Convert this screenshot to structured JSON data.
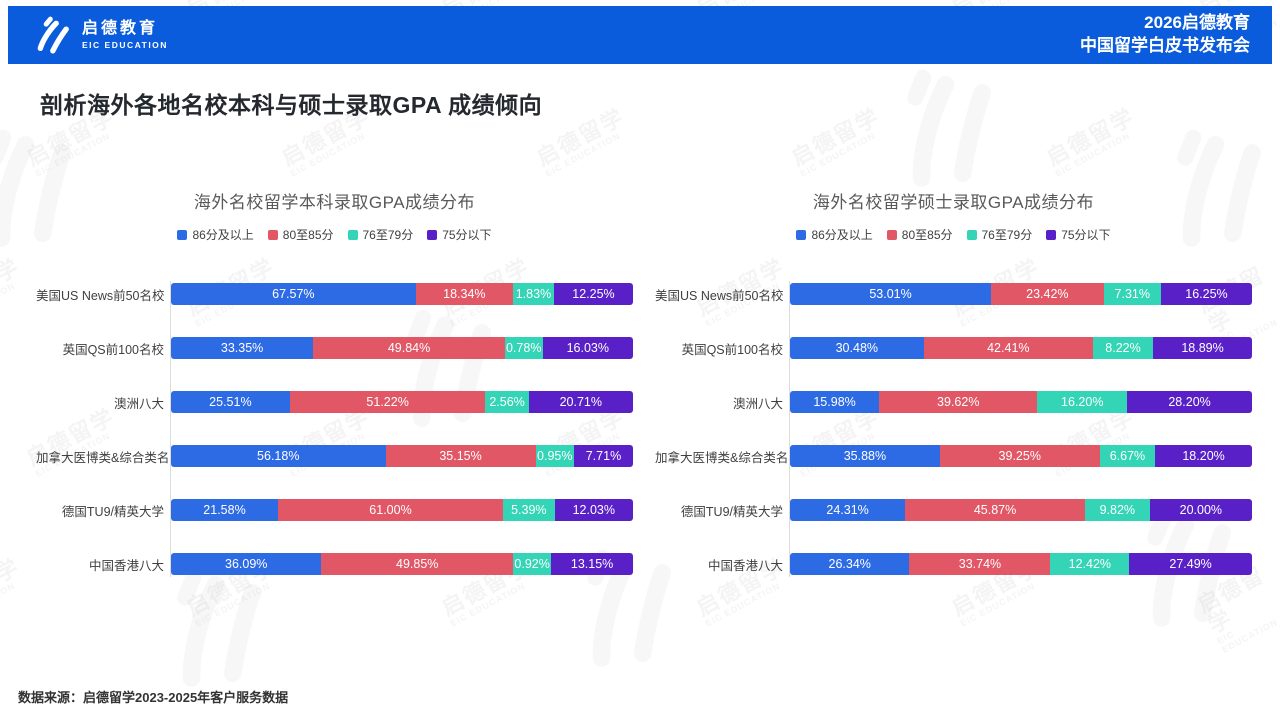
{
  "header": {
    "logo_cn": "启德教育",
    "logo_en": "EIC EDUCATION",
    "title_line1": "2026启德教育",
    "title_line2": "中国留学白皮书发布会"
  },
  "page_title": "剖析海外各地名校本科与硕士录取GPA 成绩倾向",
  "footer": {
    "source": "数据来源：启德留学2023-2025年客户服务数据"
  },
  "watermark": {
    "text_cn": "启德留学",
    "text_en": "EIC EDUCATION"
  },
  "colors": {
    "header_bg": "#0A5CDC",
    "series": [
      "#2D6BE5",
      "#E15766",
      "#34D5B6",
      "#5A20C8"
    ]
  },
  "legend": [
    "86分及以上",
    "80至85分",
    "76至79分",
    "75分以下"
  ],
  "chart_data": [
    {
      "type": "bar",
      "stacked": true,
      "orientation": "horizontal",
      "title": "海外名校留学本科录取GPA成绩分布",
      "xlim": [
        0,
        100
      ],
      "value_unit": "%",
      "categories": [
        "美国US News前50名校",
        "英国QS前100名校",
        "澳洲八大",
        "加拿大医博类&综合类名校",
        "德国TU9/精英大学",
        "中国香港八大"
      ],
      "series": [
        {
          "name": "86分及以上",
          "values": [
            67.57,
            33.35,
            25.51,
            56.18,
            21.58,
            36.09
          ]
        },
        {
          "name": "80至85分",
          "values": [
            18.34,
            49.84,
            51.22,
            35.15,
            61.0,
            49.85
          ]
        },
        {
          "name": "76至79分",
          "values": [
            1.83,
            0.78,
            2.56,
            0.95,
            5.39,
            0.92
          ]
        },
        {
          "name": "75分以下",
          "values": [
            12.25,
            16.03,
            20.71,
            7.71,
            12.03,
            13.15
          ]
        }
      ]
    },
    {
      "type": "bar",
      "stacked": true,
      "orientation": "horizontal",
      "title": "海外名校留学硕士录取GPA成绩分布",
      "xlim": [
        0,
        100
      ],
      "value_unit": "%",
      "categories": [
        "美国US News前50名校",
        "英国QS前100名校",
        "澳洲八大",
        "加拿大医博类&综合类名校",
        "德国TU9/精英大学",
        "中国香港八大"
      ],
      "series": [
        {
          "name": "86分及以上",
          "values": [
            53.01,
            30.48,
            15.98,
            35.88,
            24.31,
            26.34
          ]
        },
        {
          "name": "80至85分",
          "values": [
            23.42,
            42.41,
            39.62,
            39.25,
            45.87,
            33.74
          ]
        },
        {
          "name": "76至79分",
          "values": [
            7.31,
            8.22,
            16.2,
            6.67,
            9.82,
            12.42
          ]
        },
        {
          "name": "75分以下",
          "values": [
            16.25,
            18.89,
            28.2,
            18.2,
            20.0,
            27.49
          ]
        }
      ]
    }
  ]
}
